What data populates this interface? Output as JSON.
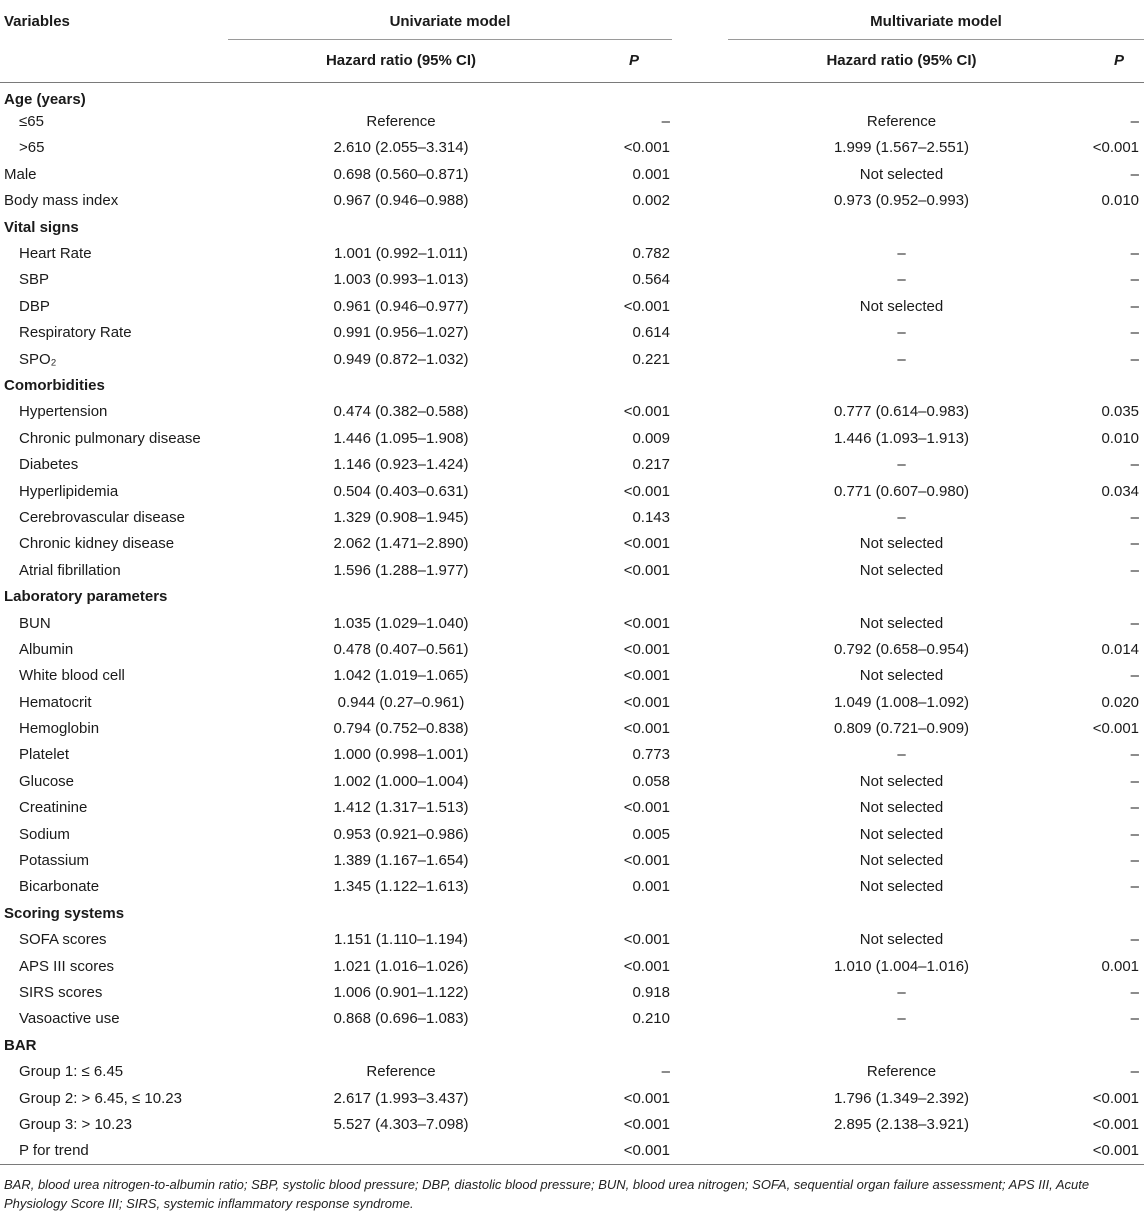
{
  "header": {
    "variables": "Variables",
    "univariate": "Univariate model",
    "multivariate": "Multivariate model",
    "hr": "Hazard ratio (95% CI)",
    "p": "P"
  },
  "rows": [
    {
      "var": "Age (years)",
      "type": "section"
    },
    {
      "var": "≤65",
      "type": "sub",
      "uhr": "Reference",
      "up": "–",
      "mhr": "Reference",
      "mp": "–"
    },
    {
      "var": ">65",
      "type": "sub",
      "uhr": "2.610 (2.055–3.314)",
      "up": "<0.001",
      "mhr": "1.999 (1.567–2.551)",
      "mp": "<0.001"
    },
    {
      "var": "Male",
      "type": "plain",
      "uhr": "0.698 (0.560–0.871)",
      "up": "0.001",
      "mhr": "Not selected",
      "mp": "–"
    },
    {
      "var": "Body mass index",
      "type": "plain",
      "uhr": "0.967 (0.946–0.988)",
      "up": "0.002",
      "mhr": "0.973 (0.952–0.993)",
      "mp": "0.010"
    },
    {
      "var": "Vital signs",
      "type": "section"
    },
    {
      "var": "Heart Rate",
      "type": "sub",
      "uhr": "1.001 (0.992–1.011)",
      "up": "0.782",
      "mhr": "–",
      "mp": "–"
    },
    {
      "var": "SBP",
      "type": "sub",
      "uhr": "1.003 (0.993–1.013)",
      "up": "0.564",
      "mhr": "–",
      "mp": "–"
    },
    {
      "var": "DBP",
      "type": "sub",
      "uhr": "0.961 (0.946–0.977)",
      "up": "<0.001",
      "mhr": "Not selected",
      "mp": "–"
    },
    {
      "var": "Respiratory Rate",
      "type": "sub",
      "uhr": "0.991 (0.956–1.027)",
      "up": "0.614",
      "mhr": "–",
      "mp": "–"
    },
    {
      "var": "SPO₂",
      "type": "sub",
      "uhr": "0.949 (0.872–1.032)",
      "up": "0.221",
      "mhr": "–",
      "mp": "–"
    },
    {
      "var": "Comorbidities",
      "type": "section"
    },
    {
      "var": "Hypertension",
      "type": "sub",
      "uhr": "0.474 (0.382–0.588)",
      "up": "<0.001",
      "mhr": "0.777 (0.614–0.983)",
      "mp": "0.035"
    },
    {
      "var": "Chronic pulmonary disease",
      "type": "sub",
      "uhr": "1.446 (1.095–1.908)",
      "up": "0.009",
      "mhr": "1.446 (1.093–1.913)",
      "mp": "0.010"
    },
    {
      "var": "Diabetes",
      "type": "sub",
      "uhr": "1.146 (0.923–1.424)",
      "up": "0.217",
      "mhr": "–",
      "mp": "–"
    },
    {
      "var": "Hyperlipidemia",
      "type": "sub",
      "uhr": "0.504 (0.403–0.631)",
      "up": "<0.001",
      "mhr": "0.771 (0.607–0.980)",
      "mp": "0.034"
    },
    {
      "var": "Cerebrovascular disease",
      "type": "sub",
      "uhr": "1.329 (0.908–1.945)",
      "up": "0.143",
      "mhr": "–",
      "mp": "–"
    },
    {
      "var": "Chronic kidney disease",
      "type": "sub",
      "uhr": "2.062 (1.471–2.890)",
      "up": "<0.001",
      "mhr": "Not selected",
      "mp": "–"
    },
    {
      "var": "Atrial fibrillation",
      "type": "sub",
      "uhr": "1.596 (1.288–1.977)",
      "up": "<0.001",
      "mhr": "Not selected",
      "mp": "–"
    },
    {
      "var": "Laboratory parameters",
      "type": "section"
    },
    {
      "var": "BUN",
      "type": "sub",
      "uhr": "1.035 (1.029–1.040)",
      "up": "<0.001",
      "mhr": "Not selected",
      "mp": "–"
    },
    {
      "var": "Albumin",
      "type": "sub",
      "uhr": "0.478 (0.407–0.561)",
      "up": "<0.001",
      "mhr": "0.792 (0.658–0.954)",
      "mp": "0.014"
    },
    {
      "var": "White blood cell",
      "type": "sub",
      "uhr": "1.042 (1.019–1.065)",
      "up": "<0.001",
      "mhr": "Not selected",
      "mp": "–"
    },
    {
      "var": "Hematocrit",
      "type": "sub",
      "uhr": "0.944 (0.27–0.961)",
      "up": "<0.001",
      "mhr": "1.049 (1.008–1.092)",
      "mp": "0.020"
    },
    {
      "var": "Hemoglobin",
      "type": "sub",
      "uhr": "0.794 (0.752–0.838)",
      "up": "<0.001",
      "mhr": "0.809 (0.721–0.909)",
      "mp": "<0.001"
    },
    {
      "var": "Platelet",
      "type": "sub",
      "uhr": "1.000 (0.998–1.001)",
      "up": "0.773",
      "mhr": "–",
      "mp": "–"
    },
    {
      "var": "Glucose",
      "type": "sub",
      "uhr": "1.002 (1.000–1.004)",
      "up": "0.058",
      "mhr": "Not selected",
      "mp": "–"
    },
    {
      "var": "Creatinine",
      "type": "sub",
      "uhr": "1.412 (1.317–1.513)",
      "up": "<0.001",
      "mhr": "Not selected",
      "mp": "–"
    },
    {
      "var": "Sodium",
      "type": "sub",
      "uhr": "0.953 (0.921–0.986)",
      "up": "0.005",
      "mhr": "Not selected",
      "mp": "–"
    },
    {
      "var": "Potassium",
      "type": "sub",
      "uhr": "1.389 (1.167–1.654)",
      "up": "<0.001",
      "mhr": "Not selected",
      "mp": "–"
    },
    {
      "var": "Bicarbonate",
      "type": "sub",
      "uhr": "1.345 (1.122–1.613)",
      "up": "0.001",
      "mhr": "Not selected",
      "mp": "–"
    },
    {
      "var": "Scoring systems",
      "type": "section"
    },
    {
      "var": "SOFA scores",
      "type": "sub",
      "uhr": "1.151 (1.110–1.194)",
      "up": "<0.001",
      "mhr": "Not selected",
      "mp": "–"
    },
    {
      "var": "APS III scores",
      "type": "sub",
      "uhr": "1.021 (1.016–1.026)",
      "up": "<0.001",
      "mhr": "1.010 (1.004–1.016)",
      "mp": "0.001"
    },
    {
      "var": "SIRS scores",
      "type": "sub",
      "uhr": "1.006 (0.901–1.122)",
      "up": "0.918",
      "mhr": "–",
      "mp": "–"
    },
    {
      "var": "Vasoactive use",
      "type": "sub",
      "uhr": "0.868 (0.696–1.083)",
      "up": "0.210",
      "mhr": "–",
      "mp": "–"
    },
    {
      "var": "BAR",
      "type": "section"
    },
    {
      "var": "Group 1: ≤ 6.45",
      "type": "sub",
      "uhr": "Reference",
      "up": "–",
      "mhr": "Reference",
      "mp": "–"
    },
    {
      "var": "Group 2: > 6.45, ≤ 10.23",
      "type": "sub",
      "uhr": "2.617 (1.993–3.437)",
      "up": "<0.001",
      "mhr": "1.796 (1.349–2.392)",
      "mp": "<0.001"
    },
    {
      "var": "Group 3: > 10.23",
      "type": "sub",
      "uhr": "5.527 (4.303–7.098)",
      "up": "<0.001",
      "mhr": "2.895 (2.138–3.921)",
      "mp": "<0.001"
    },
    {
      "var": "P for trend",
      "type": "sub",
      "uhr": "",
      "up": "<0.001",
      "mhr": "",
      "mp": "<0.001"
    }
  ],
  "footnote": "BAR, blood urea nitrogen-to-albumin ratio; SBP, systolic blood pressure; DBP, diastolic blood pressure; BUN, blood urea nitrogen; SOFA, sequential organ failure assessment; APS III, Acute Physiology Score III; SIRS, systemic inflammatory response syndrome."
}
